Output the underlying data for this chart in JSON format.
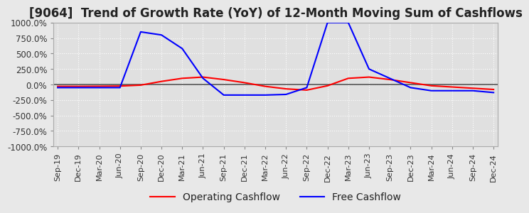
{
  "title": "[9064]  Trend of Growth Rate (YoY) of 12-Month Moving Sum of Cashflows",
  "ylim": [
    -1000,
    1000
  ],
  "yticks": [
    -1000,
    -750,
    -500,
    -250,
    0,
    250,
    500,
    750,
    1000
  ],
  "ytick_labels": [
    "-1000.0%",
    "-750.0%",
    "-500.0%",
    "-250.0%",
    "0.0%",
    "250.0%",
    "500.0%",
    "750.0%",
    "1000.0%"
  ],
  "xtick_labels": [
    "Sep-19",
    "Dec-19",
    "Mar-20",
    "Jun-20",
    "Sep-20",
    "Dec-20",
    "Mar-21",
    "Jun-21",
    "Sep-21",
    "Dec-21",
    "Mar-22",
    "Jun-22",
    "Sep-22",
    "Dec-22",
    "Mar-23",
    "Jun-23",
    "Sep-23",
    "Dec-23",
    "Mar-24",
    "Jun-24",
    "Sep-24",
    "Dec-24"
  ],
  "legend_labels": [
    "Operating Cashflow",
    "Free Cashflow"
  ],
  "line_colors": [
    "red",
    "blue"
  ],
  "background_color": "#e8e8e8",
  "plot_bg_color": "#e0e0e0",
  "grid_color": "#ffffff",
  "title_fontsize": 12,
  "operating_cashflow": [
    -30,
    -30,
    -28,
    -25,
    -10,
    50,
    100,
    120,
    80,
    30,
    -30,
    -70,
    -90,
    -20,
    100,
    120,
    80,
    30,
    -20,
    -40,
    -60,
    -80
  ],
  "free_cashflow": [
    -50,
    -50,
    -50,
    -50,
    850,
    800,
    580,
    100,
    -170,
    -170,
    -170,
    -160,
    -50,
    1000,
    1000,
    250,
    100,
    -50,
    -100,
    -100,
    -100,
    -130
  ]
}
